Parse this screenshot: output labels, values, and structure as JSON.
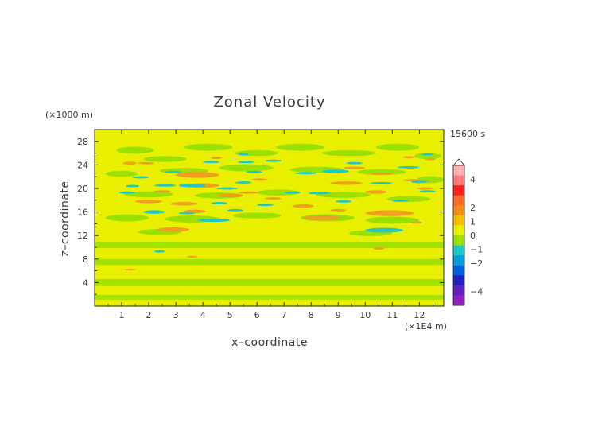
{
  "chart_data": {
    "type": "heatmap",
    "title": "Zonal Velocity",
    "xlabel": "x–coordinate",
    "ylabel": "z–coordinate",
    "x_unit": "(×1E4 m)",
    "y_unit": "(×1000 m)",
    "time_label": "15600 s",
    "xlim": [
      0,
      12.9
    ],
    "ylim": [
      0,
      30
    ],
    "x_ticks": [
      "1",
      "2",
      "3",
      "4",
      "5",
      "6",
      "7",
      "8",
      "9",
      "10",
      "11",
      "12"
    ],
    "y_ticks": [
      "4",
      "8",
      "12",
      "16",
      "20",
      "24",
      "28"
    ],
    "colorbar": {
      "tick_labels": [
        "4",
        "2",
        "1",
        "0",
        "−1",
        "−2",
        "−4"
      ],
      "tick_values": [
        4,
        2,
        1,
        0,
        -1,
        -2,
        -4
      ],
      "range": [
        -5,
        5
      ]
    },
    "colors": {
      "background": "#e8f000",
      "green": "#9be000",
      "cyan": "#20c8c8",
      "orange": "#f0a020"
    }
  }
}
